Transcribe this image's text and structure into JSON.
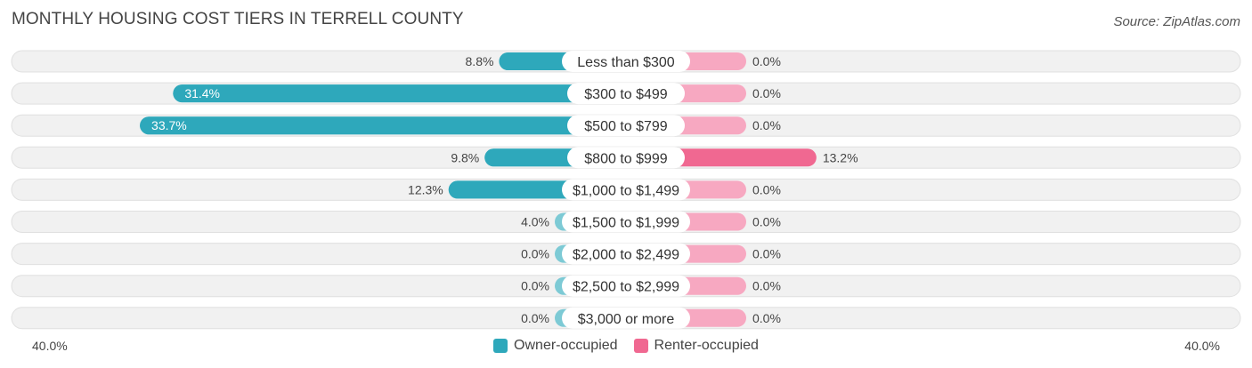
{
  "title": "MONTHLY HOUSING COST TIERS IN TERRELL COUNTY",
  "source": "Source: ZipAtlas.com",
  "chart_data": {
    "type": "bar",
    "orientation": "diverging-horizontal",
    "categories": [
      "Less than $300",
      "$300 to $499",
      "$500 to $799",
      "$800 to $999",
      "$1,000 to $1,499",
      "$1,500 to $1,999",
      "$2,000 to $2,499",
      "$2,500 to $2,999",
      "$3,000 or more"
    ],
    "series": [
      {
        "name": "Owner-occupied",
        "values": [
          8.8,
          31.4,
          33.7,
          9.8,
          12.3,
          4.0,
          0.0,
          0.0,
          0.0
        ],
        "labels": [
          "8.8%",
          "31.4%",
          "33.7%",
          "9.8%",
          "12.3%",
          "4.0%",
          "0.0%",
          "0.0%",
          "0.0%"
        ],
        "color": "#2ea8bb",
        "color_light": "#7dcad5"
      },
      {
        "name": "Renter-occupied",
        "values": [
          0.0,
          0.0,
          0.0,
          13.2,
          0.0,
          0.0,
          0.0,
          0.0,
          0.0
        ],
        "labels": [
          "0.0%",
          "0.0%",
          "0.0%",
          "13.2%",
          "0.0%",
          "0.0%",
          "0.0%",
          "0.0%",
          "0.0%"
        ],
        "color": "#f06891",
        "color_light": "#f7a8c1"
      }
    ],
    "xlim": [
      -40,
      40
    ],
    "axis_left_label": "40.0%",
    "axis_right_label": "40.0%",
    "legend_position": "bottom-center"
  }
}
